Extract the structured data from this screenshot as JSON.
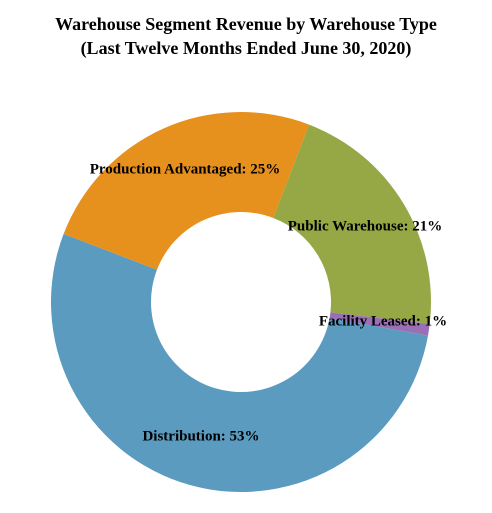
{
  "chart_data": {
    "type": "donut",
    "title": "Warehouse Segment Revenue by Warehouse Type",
    "subtitle": "(Last Twelve Months Ended June 30, 2020)",
    "values": [
      21,
      1,
      53,
      25
    ],
    "value_labels": [
      "Public Warehouse: 21%",
      "Facility Leased: 1%",
      "Distribution: 53%",
      "Production Advantaged: 25%"
    ],
    "colors": [
      "#95a845",
      "#9b6fb5",
      "#5a9bbf",
      "#e6901d"
    ]
  }
}
